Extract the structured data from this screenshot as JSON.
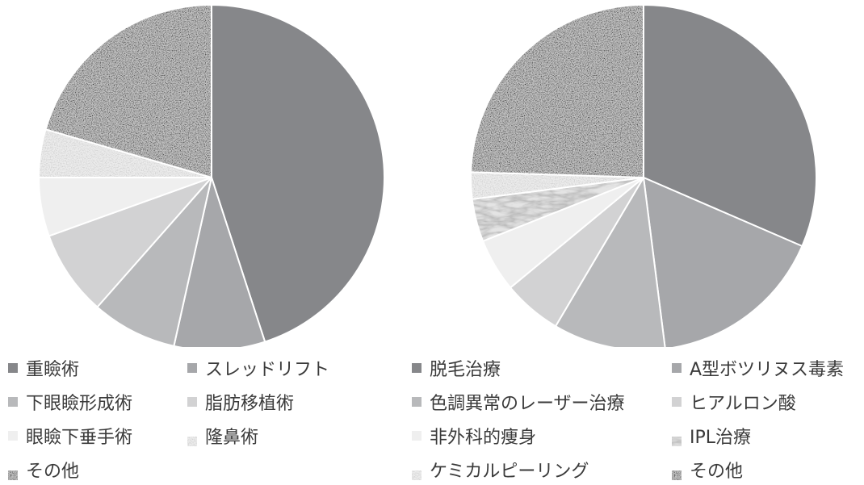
{
  "chart_data": [
    {
      "type": "pie",
      "start": "12 o'clock, clockwise",
      "slices": [
        {
          "label": "重瞼術",
          "value": 45.0,
          "color": "#86878a",
          "pattern": "solid"
        },
        {
          "label": "スレッドリフト",
          "value": 8.5,
          "color": "#a6a7aa",
          "pattern": "solid"
        },
        {
          "label": "下眼瞼形成術",
          "value": 8.0,
          "color": "#b8b9bb",
          "pattern": "solid"
        },
        {
          "label": "脂肪移植術",
          "value": 8.0,
          "color": "#d2d2d3",
          "pattern": "solid"
        },
        {
          "label": "眼瞼下垂手術",
          "value": 5.5,
          "color": "#efefef",
          "pattern": "solid"
        },
        {
          "label": "隆鼻術",
          "value": 4.5,
          "color": "#e3e3e3",
          "pattern": "speckle-light"
        },
        {
          "label": "その他",
          "value": 20.5,
          "color": "#8c8c8c",
          "pattern": "speckle-dark"
        }
      ],
      "legend_order": [
        0,
        1,
        2,
        3,
        4,
        5,
        6
      ]
    },
    {
      "type": "pie",
      "start": "12 o'clock, clockwise",
      "slices": [
        {
          "label": "脱毛治療",
          "value": 31.5,
          "color": "#86878a",
          "pattern": "solid"
        },
        {
          "label": "A型ボツリヌス毒素",
          "value": 16.5,
          "color": "#a6a7aa",
          "pattern": "solid"
        },
        {
          "label": "色調異常のレーザー治療",
          "value": 10.5,
          "color": "#b8b9bb",
          "pattern": "solid"
        },
        {
          "label": "ヒアルロン酸",
          "value": 5.5,
          "color": "#d2d2d3",
          "pattern": "solid"
        },
        {
          "label": "非外科的痩身",
          "value": 5.0,
          "color": "#efefef",
          "pattern": "solid"
        },
        {
          "label": "IPL治療",
          "value": 4.0,
          "color": "#d0d0d0",
          "pattern": "marble"
        },
        {
          "label": "ケミカルピーリング",
          "value": 2.5,
          "color": "#e3e3e3",
          "pattern": "speckle-light"
        },
        {
          "label": "その他",
          "value": 24.5,
          "color": "#8c8c8c",
          "pattern": "speckle-dark"
        }
      ],
      "legend_order": [
        0,
        1,
        2,
        3,
        4,
        5,
        6,
        7
      ]
    }
  ]
}
